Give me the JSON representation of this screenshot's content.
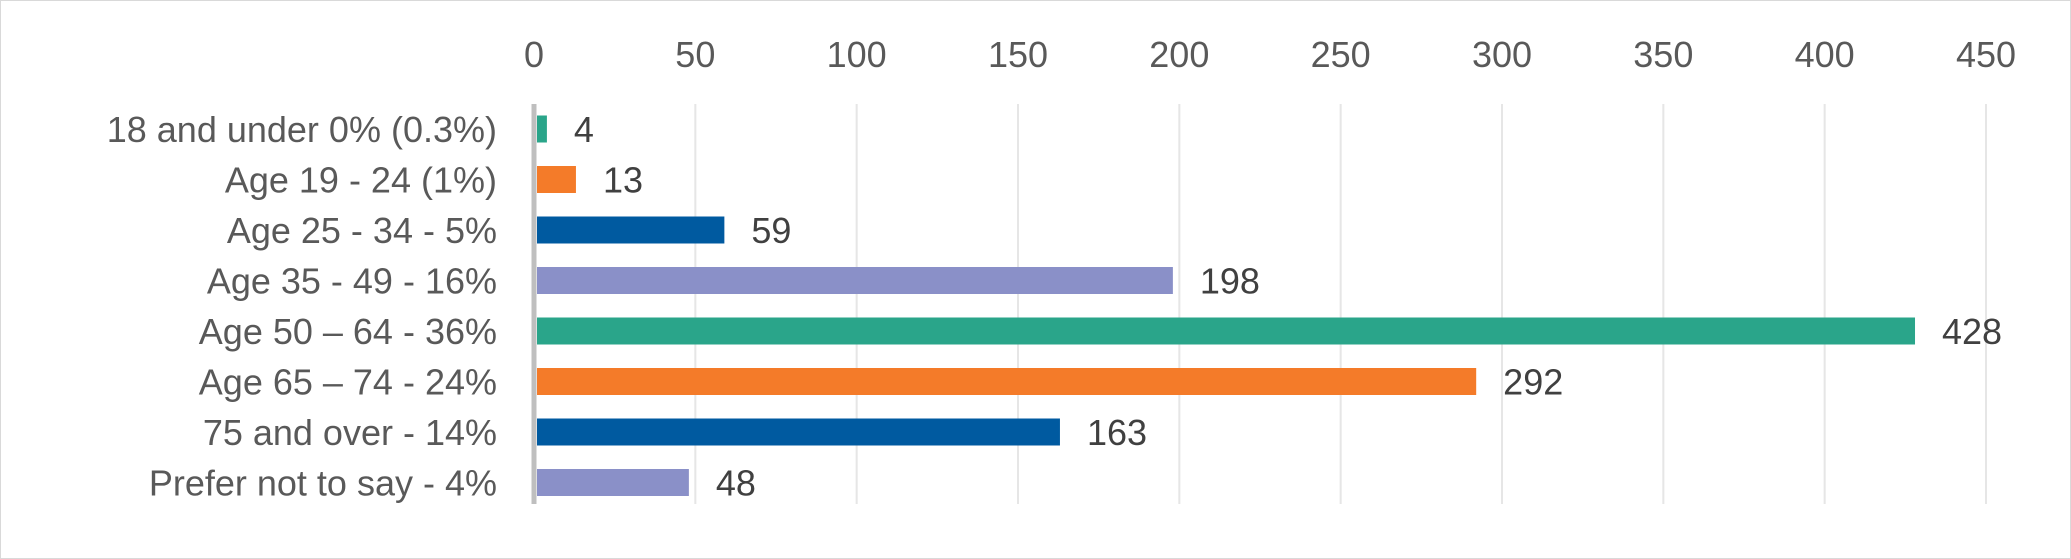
{
  "chart_data": {
    "type": "bar",
    "orientation": "horizontal",
    "title": "",
    "xlabel": "",
    "ylabel": "",
    "xlim": [
      0,
      450
    ],
    "xticks": [
      0,
      50,
      100,
      150,
      200,
      250,
      300,
      350,
      400,
      450
    ],
    "x_axis_position": "top",
    "grid": true,
    "legend": "none",
    "categories": [
      "18 and under 0% (0.3%)",
      "Age 19 - 24 (1%)",
      "Age 25 - 34 - 5%",
      "Age 35 - 49 - 16%",
      "Age 50 – 64 - 36%",
      "Age 65 – 74 - 24%",
      "75 and over - 14%",
      "Prefer not to say - 4%"
    ],
    "values": [
      4,
      13,
      59,
      198,
      428,
      292,
      163,
      48
    ],
    "data_labels": [
      "4",
      "13",
      "59",
      "198",
      "428",
      "292",
      "163",
      "48"
    ],
    "bar_colors": [
      "#2aa58a",
      "#f47b29",
      "#005aa0",
      "#8a90c8",
      "#2aa58a",
      "#f47b29",
      "#005aa0",
      "#8a90c8"
    ]
  }
}
